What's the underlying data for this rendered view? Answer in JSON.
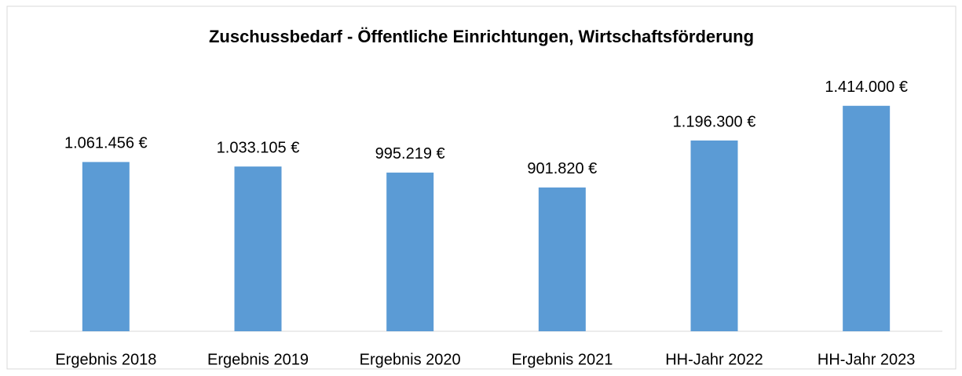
{
  "chart_data": {
    "type": "bar",
    "title": "Zuschussbedarf - Öffentliche Einrichtungen, Wirtschaftsförderung",
    "categories": [
      "Ergebnis 2018",
      "Ergebnis 2019",
      "Ergebnis 2020",
      "Ergebnis 2021",
      "HH-Jahr 2022",
      "HH-Jahr 2023"
    ],
    "values": [
      1061456,
      1033105,
      995219,
      901820,
      1196300,
      1414000
    ],
    "value_labels": [
      "1.061.456 €",
      "1.033.105 €",
      "995.219 €",
      "901.820 €",
      "1.196.300 €",
      "1.414.000 €"
    ],
    "color": "#5b9bd5",
    "ylim": [
      0,
      1600000
    ]
  }
}
